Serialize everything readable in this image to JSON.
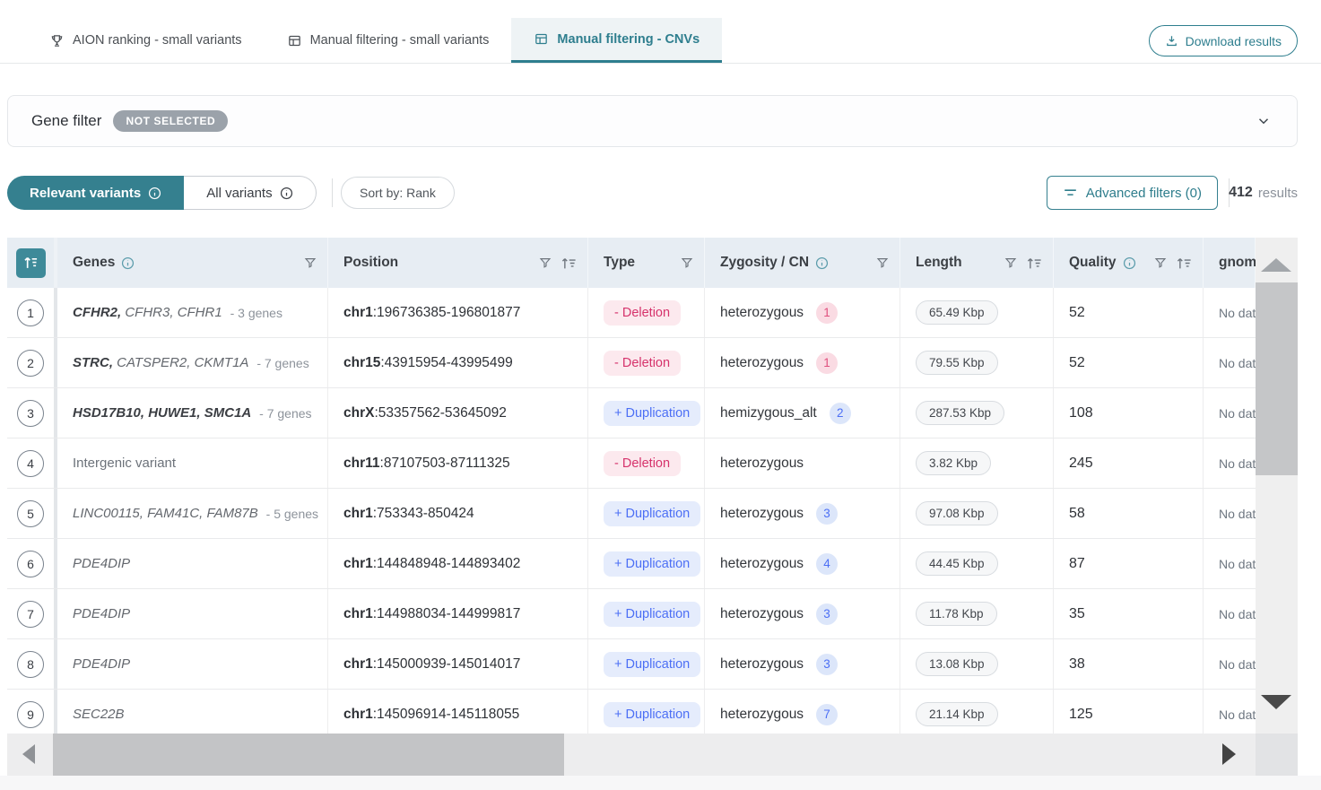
{
  "header": {
    "download_label": "Download results"
  },
  "tabs": [
    {
      "label": "AION ranking - small variants",
      "icon": "trophy-icon",
      "active": false
    },
    {
      "label": "Manual filtering - small variants",
      "icon": "table-icon",
      "active": false
    },
    {
      "label": "Manual filtering - CNVs",
      "icon": "table-icon",
      "active": true
    }
  ],
  "gene_filter": {
    "label": "Gene filter",
    "status_badge": "NOT SELECTED"
  },
  "controls": {
    "relevant_label": "Relevant variants",
    "all_label": "All variants",
    "sort_by": "Sort by: Rank",
    "advanced_filters": "Advanced filters (0)",
    "results_count": "412",
    "results_label": "results"
  },
  "table": {
    "columns": [
      {
        "key": "rank",
        "label": "",
        "info": false,
        "filter": false,
        "sort": false,
        "rank_icon": "sort-rank-icon"
      },
      {
        "key": "genes",
        "label": "Genes",
        "info": true,
        "filter": true,
        "sort": false
      },
      {
        "key": "position",
        "label": "Position",
        "info": false,
        "filter": true,
        "sort": true
      },
      {
        "key": "type",
        "label": "Type",
        "info": false,
        "filter": true,
        "sort": false
      },
      {
        "key": "zygosity",
        "label": "Zygosity / CN",
        "info": true,
        "filter": true,
        "sort": false
      },
      {
        "key": "length",
        "label": "Length",
        "info": false,
        "filter": true,
        "sort": true
      },
      {
        "key": "quality",
        "label": "Quality",
        "info": true,
        "filter": true,
        "sort": true
      },
      {
        "key": "gnomad",
        "label": "gnom",
        "info": false,
        "filter": false,
        "sort": false
      }
    ],
    "rows": [
      {
        "rank": "1",
        "genes": [
          {
            "text": "CFHR2",
            "bold": true
          },
          {
            "text": "CFHR3",
            "bold": false
          },
          {
            "text": "CFHR1",
            "bold": false
          }
        ],
        "genes_suffix": "- 3 genes",
        "genes_plain": "",
        "chr": "chr1",
        "coords": ":196736385-196801877",
        "type_label": "- Deletion",
        "type_kind": "deletion",
        "zygosity": "heterozygous",
        "cn": "1",
        "cn_kind": "deletion",
        "length": "65.49 Kbp",
        "quality": "52",
        "gnomad": "No dat"
      },
      {
        "rank": "2",
        "genes": [
          {
            "text": "STRC",
            "bold": true
          },
          {
            "text": "CATSPER2",
            "bold": false
          },
          {
            "text": "CKMT1A",
            "bold": false
          }
        ],
        "genes_suffix": "- 7 genes",
        "genes_plain": "",
        "chr": "chr15",
        "coords": ":43915954-43995499",
        "type_label": "- Deletion",
        "type_kind": "deletion",
        "zygosity": "heterozygous",
        "cn": "1",
        "cn_kind": "deletion",
        "length": "79.55 Kbp",
        "quality": "52",
        "gnomad": "No dat"
      },
      {
        "rank": "3",
        "genes": [
          {
            "text": "HSD17B10",
            "bold": true
          },
          {
            "text": "HUWE1",
            "bold": true
          },
          {
            "text": "SMC1A",
            "bold": true
          }
        ],
        "genes_suffix": "- 7 genes",
        "genes_plain": "",
        "chr": "chrX",
        "coords": ":53357562-53645092",
        "type_label": "+ Duplication",
        "type_kind": "duplication",
        "zygosity": "hemizygous_alt",
        "cn": "2",
        "cn_kind": "duplication",
        "length": "287.53 Kbp",
        "quality": "108",
        "gnomad": "No dat"
      },
      {
        "rank": "4",
        "genes": [],
        "genes_suffix": "",
        "genes_plain": "Intergenic variant",
        "chr": "chr11",
        "coords": ":87107503-87111325",
        "type_label": "- Deletion",
        "type_kind": "deletion",
        "zygosity": "heterozygous",
        "cn": "",
        "cn_kind": "",
        "length": "3.82 Kbp",
        "quality": "245",
        "gnomad": "No dat"
      },
      {
        "rank": "5",
        "genes": [
          {
            "text": "LINC00115",
            "bold": false
          },
          {
            "text": "FAM41C",
            "bold": false
          },
          {
            "text": "FAM87B",
            "bold": false
          }
        ],
        "genes_suffix": "- 5 genes",
        "genes_plain": "",
        "chr": "chr1",
        "coords": ":753343-850424",
        "type_label": "+ Duplication",
        "type_kind": "duplication",
        "zygosity": "heterozygous",
        "cn": "3",
        "cn_kind": "duplication",
        "length": "97.08 Kbp",
        "quality": "58",
        "gnomad": "No dat"
      },
      {
        "rank": "6",
        "genes": [
          {
            "text": "PDE4DIP",
            "bold": false
          }
        ],
        "genes_suffix": "",
        "genes_plain": "",
        "chr": "chr1",
        "coords": ":144848948-144893402",
        "type_label": "+ Duplication",
        "type_kind": "duplication",
        "zygosity": "heterozygous",
        "cn": "4",
        "cn_kind": "duplication",
        "length": "44.45 Kbp",
        "quality": "87",
        "gnomad": "No dat"
      },
      {
        "rank": "7",
        "genes": [
          {
            "text": "PDE4DIP",
            "bold": false
          }
        ],
        "genes_suffix": "",
        "genes_plain": "",
        "chr": "chr1",
        "coords": ":144988034-144999817",
        "type_label": "+ Duplication",
        "type_kind": "duplication",
        "zygosity": "heterozygous",
        "cn": "3",
        "cn_kind": "duplication",
        "length": "11.78 Kbp",
        "quality": "35",
        "gnomad": "No dat"
      },
      {
        "rank": "8",
        "genes": [
          {
            "text": "PDE4DIP",
            "bold": false
          }
        ],
        "genes_suffix": "",
        "genes_plain": "",
        "chr": "chr1",
        "coords": ":145000939-145014017",
        "type_label": "+ Duplication",
        "type_kind": "duplication",
        "zygosity": "heterozygous",
        "cn": "3",
        "cn_kind": "duplication",
        "length": "13.08 Kbp",
        "quality": "38",
        "gnomad": "No dat"
      },
      {
        "rank": "9",
        "genes": [
          {
            "text": "SEC22B",
            "bold": false
          }
        ],
        "genes_suffix": "",
        "genes_plain": "",
        "chr": "chr1",
        "coords": ":145096914-145118055",
        "type_label": "+ Duplication",
        "type_kind": "duplication",
        "zygosity": "heterozygous",
        "cn": "7",
        "cn_kind": "duplication",
        "length": "21.14 Kbp",
        "quality": "125",
        "gnomad": "No dat"
      }
    ]
  },
  "colors": {
    "accent_teal": "#2E7E8E",
    "header_bg": "#E7EDF3",
    "deletion_text": "#D6336C",
    "deletion_bg": "#FCE9EE",
    "duplication_text": "#4C6FF5",
    "duplication_bg": "#E5ECFC",
    "badge_gray": "#9BA2AA"
  }
}
